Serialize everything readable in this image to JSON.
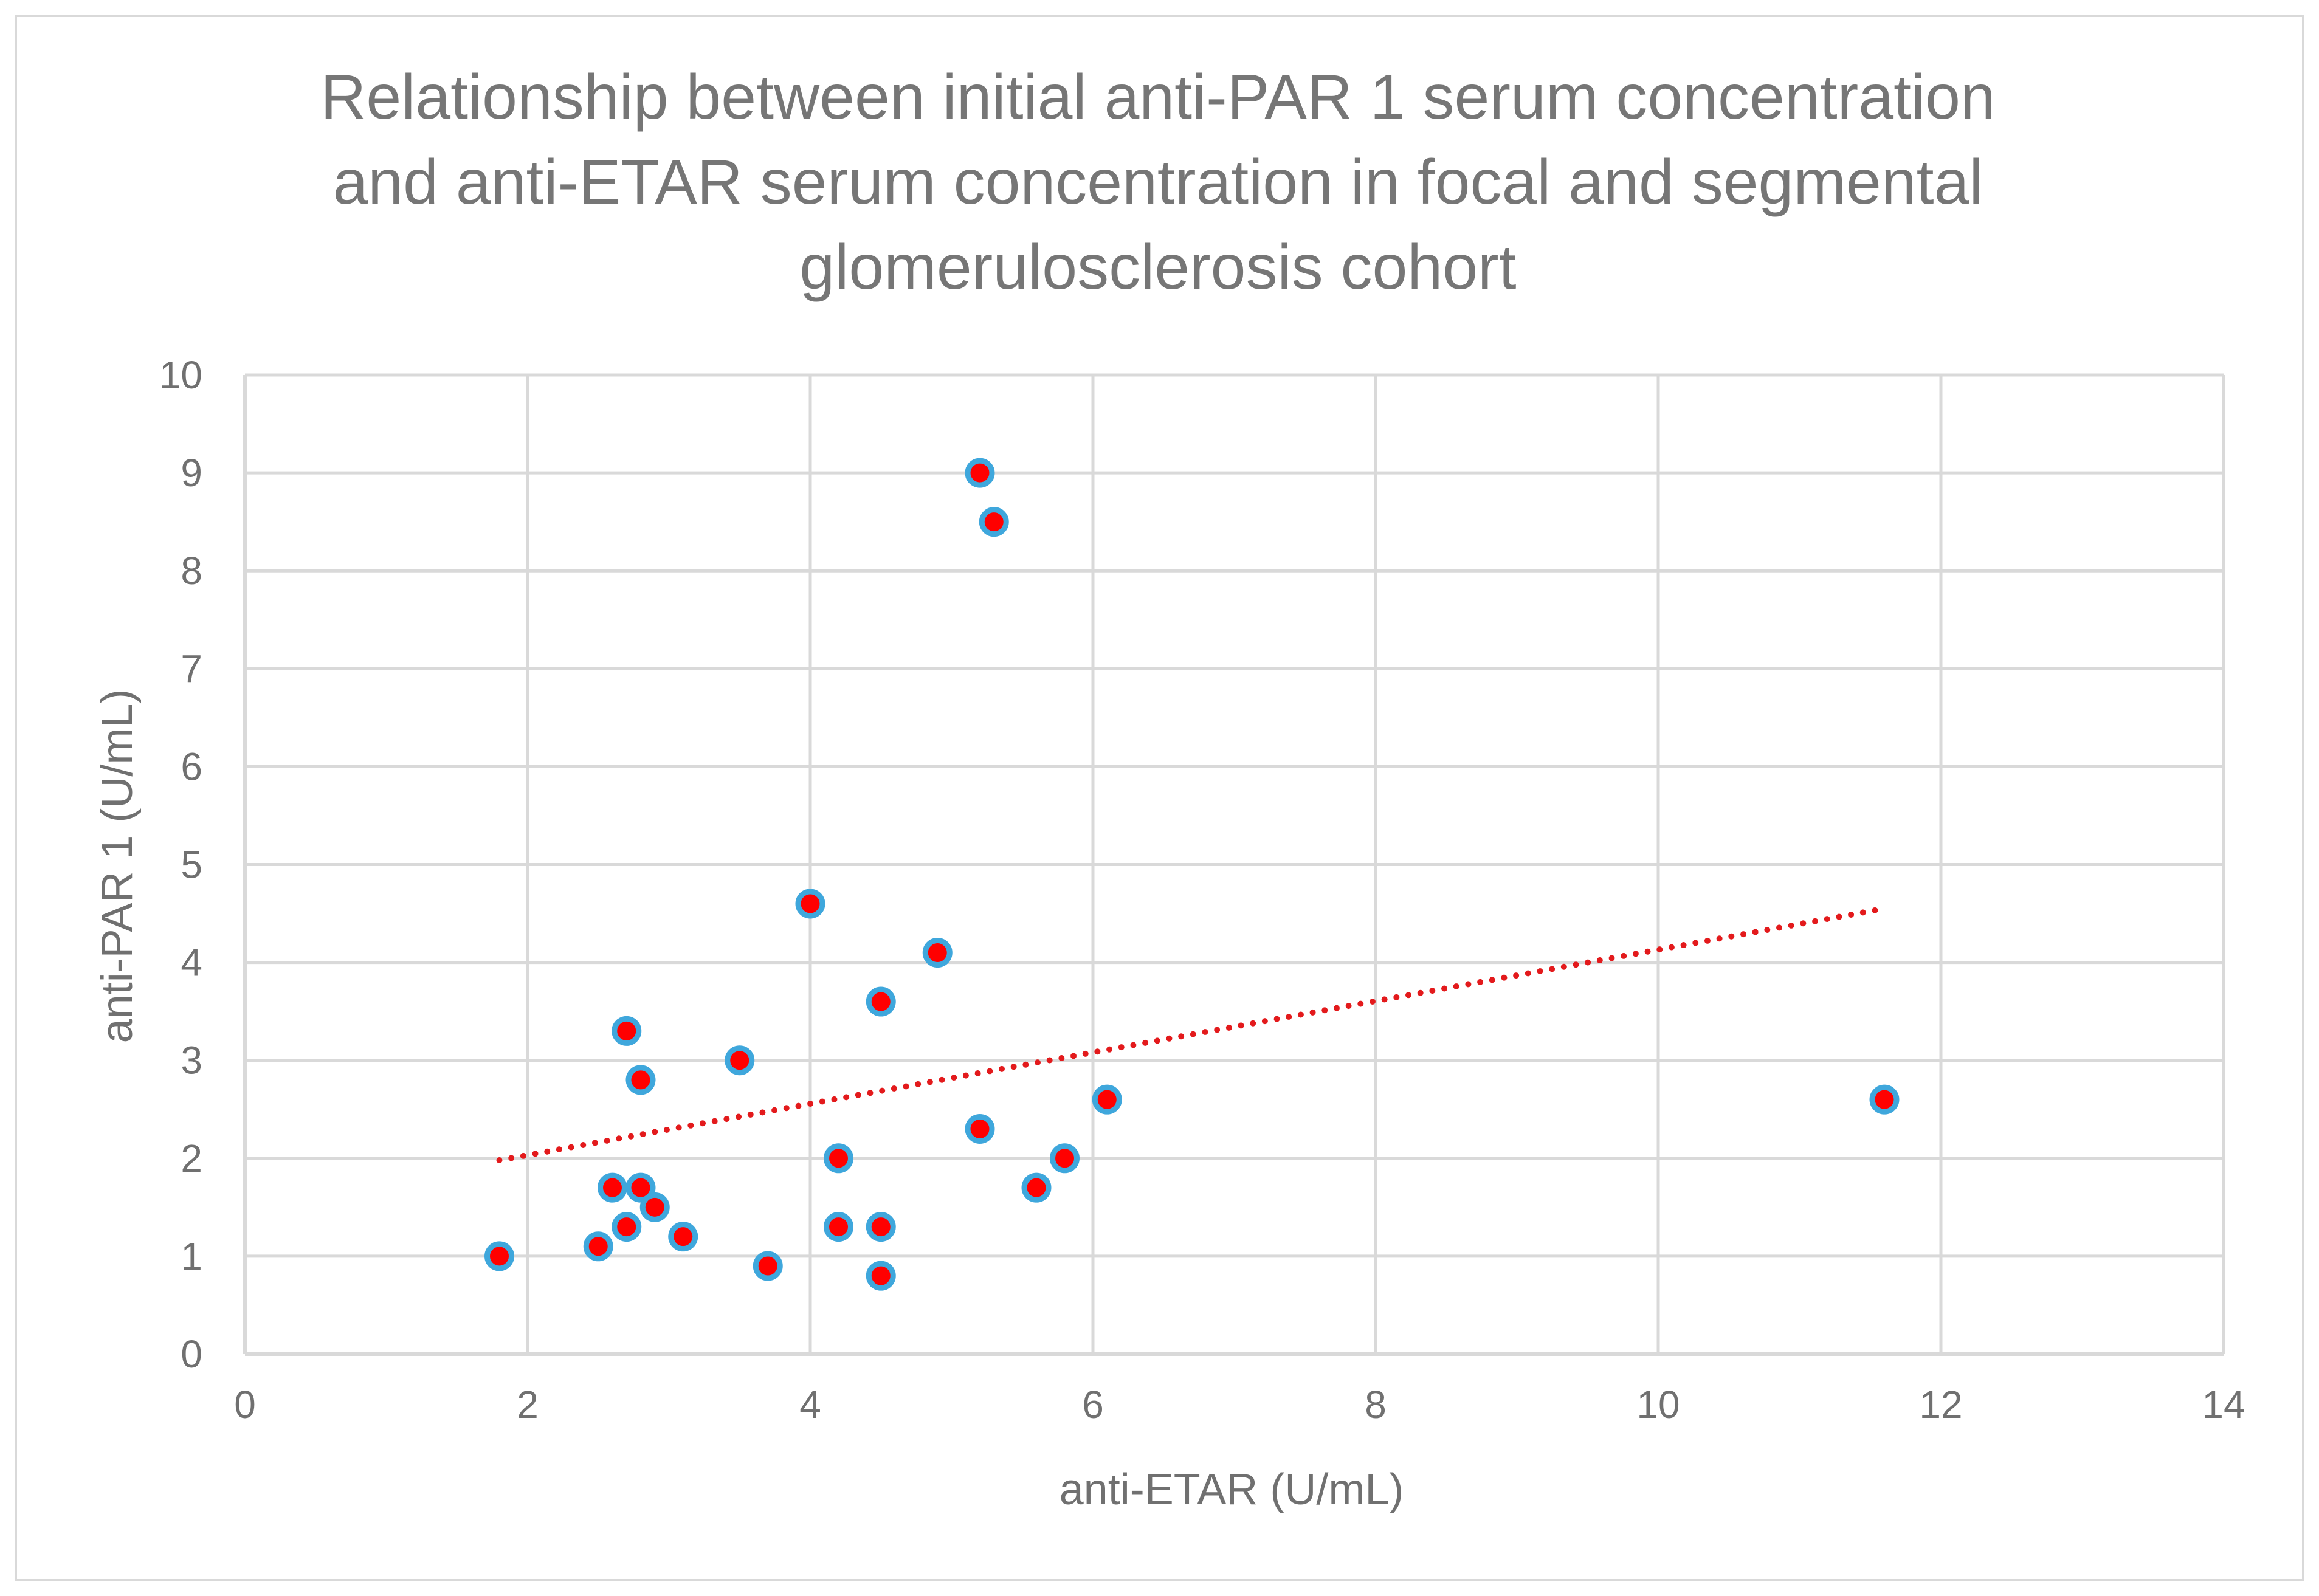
{
  "chart_data": {
    "type": "scatter",
    "title_lines": [
      "Relationship between initial anti-PAR 1 serum concentration",
      "and anti-ETAR serum concentration in focal and segmental",
      "glomerulosclerosis cohort"
    ],
    "xlabel": "anti-ETAR (U/mL)",
    "ylabel": "anti-PAR 1 (U/mL)",
    "xlim": [
      0,
      14
    ],
    "ylim": [
      0,
      10
    ],
    "x_ticks": [
      "0",
      "2",
      "4",
      "6",
      "8",
      "10",
      "12",
      "14"
    ],
    "y_ticks": [
      "0",
      "1",
      "2",
      "3",
      "4",
      "5",
      "6",
      "7",
      "8",
      "9",
      "10"
    ],
    "grid": true,
    "legend": "none",
    "points": [
      {
        "x": 1.8,
        "y": 1.0
      },
      {
        "x": 2.5,
        "y": 1.1
      },
      {
        "x": 2.6,
        "y": 1.7
      },
      {
        "x": 2.7,
        "y": 1.3
      },
      {
        "x": 2.7,
        "y": 3.3
      },
      {
        "x": 2.8,
        "y": 1.7
      },
      {
        "x": 2.8,
        "y": 2.8
      },
      {
        "x": 2.9,
        "y": 1.5
      },
      {
        "x": 3.1,
        "y": 1.2
      },
      {
        "x": 3.5,
        "y": 3.0
      },
      {
        "x": 3.7,
        "y": 0.9
      },
      {
        "x": 4.0,
        "y": 4.6
      },
      {
        "x": 4.2,
        "y": 2.0
      },
      {
        "x": 4.2,
        "y": 1.3
      },
      {
        "x": 4.5,
        "y": 3.6
      },
      {
        "x": 4.5,
        "y": 1.3
      },
      {
        "x": 4.5,
        "y": 0.8
      },
      {
        "x": 4.9,
        "y": 4.1
      },
      {
        "x": 5.2,
        "y": 9.0
      },
      {
        "x": 5.3,
        "y": 8.5
      },
      {
        "x": 5.2,
        "y": 2.3
      },
      {
        "x": 5.6,
        "y": 1.7
      },
      {
        "x": 5.8,
        "y": 2.0
      },
      {
        "x": 6.1,
        "y": 2.6
      },
      {
        "x": 11.6,
        "y": 2.6
      }
    ],
    "trendline": {
      "type": "linear",
      "x_start": 1.8,
      "y_start": 1.98,
      "x_end": 11.6,
      "y_end": 4.55,
      "color": "#e31a1c",
      "style": "dotted"
    },
    "colors": {
      "marker_fill": "#ff0000",
      "marker_stroke": "#3fa7dc",
      "grid": "#d9d9d9",
      "text": "#707070",
      "title": "#767676"
    }
  }
}
